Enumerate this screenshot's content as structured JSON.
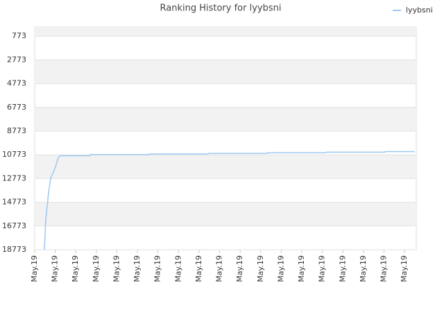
{
  "chart_data": {
    "type": "line",
    "title": "Ranking History for lyybsni",
    "x": [
      0.47,
      0.54,
      0.68,
      0.78,
      0.91,
      1.01,
      1.15,
      1.25,
      2.69,
      2.7,
      5.56,
      5.57,
      8.44,
      8.45,
      11.31,
      11.32,
      14.18,
      14.19,
      17.05,
      17.06,
      18.48
    ],
    "series": [
      {
        "name": "lyybsni",
        "color": "#9cc7f0",
        "values": [
          18773,
          16200,
          13900,
          12700,
          12250,
          11800,
          11000,
          10850,
          10850,
          10750,
          10750,
          10700,
          10700,
          10650,
          10650,
          10600,
          10600,
          10550,
          10550,
          10500,
          10500
        ]
      }
    ],
    "xlim": [
      0,
      18.57
    ],
    "xticks": [
      {
        "value": 0,
        "label": "May.19"
      },
      {
        "value": 1,
        "label": "May.19"
      },
      {
        "value": 2,
        "label": "May.19"
      },
      {
        "value": 3,
        "label": "May.19"
      },
      {
        "value": 4,
        "label": "May.19"
      },
      {
        "value": 5,
        "label": "May.19"
      },
      {
        "value": 6,
        "label": "May.19"
      },
      {
        "value": 7,
        "label": "May.19"
      },
      {
        "value": 8,
        "label": "May.19"
      },
      {
        "value": 9,
        "label": "May.19"
      },
      {
        "value": 10,
        "label": "May.19"
      },
      {
        "value": 11,
        "label": "May.19"
      },
      {
        "value": 12,
        "label": "May.19"
      },
      {
        "value": 13,
        "label": "May.19"
      },
      {
        "value": 14,
        "label": "May.19"
      },
      {
        "value": 15,
        "label": "May.19"
      },
      {
        "value": 16,
        "label": "May.19"
      },
      {
        "value": 17,
        "label": "May.19"
      },
      {
        "value": 18,
        "label": "May.19"
      }
    ],
    "ylim": [
      18773,
      0
    ],
    "yticks": [
      773,
      2773,
      4773,
      6773,
      8773,
      10773,
      12773,
      14773,
      16773,
      18773
    ],
    "grid": true,
    "legend": "top-right"
  }
}
